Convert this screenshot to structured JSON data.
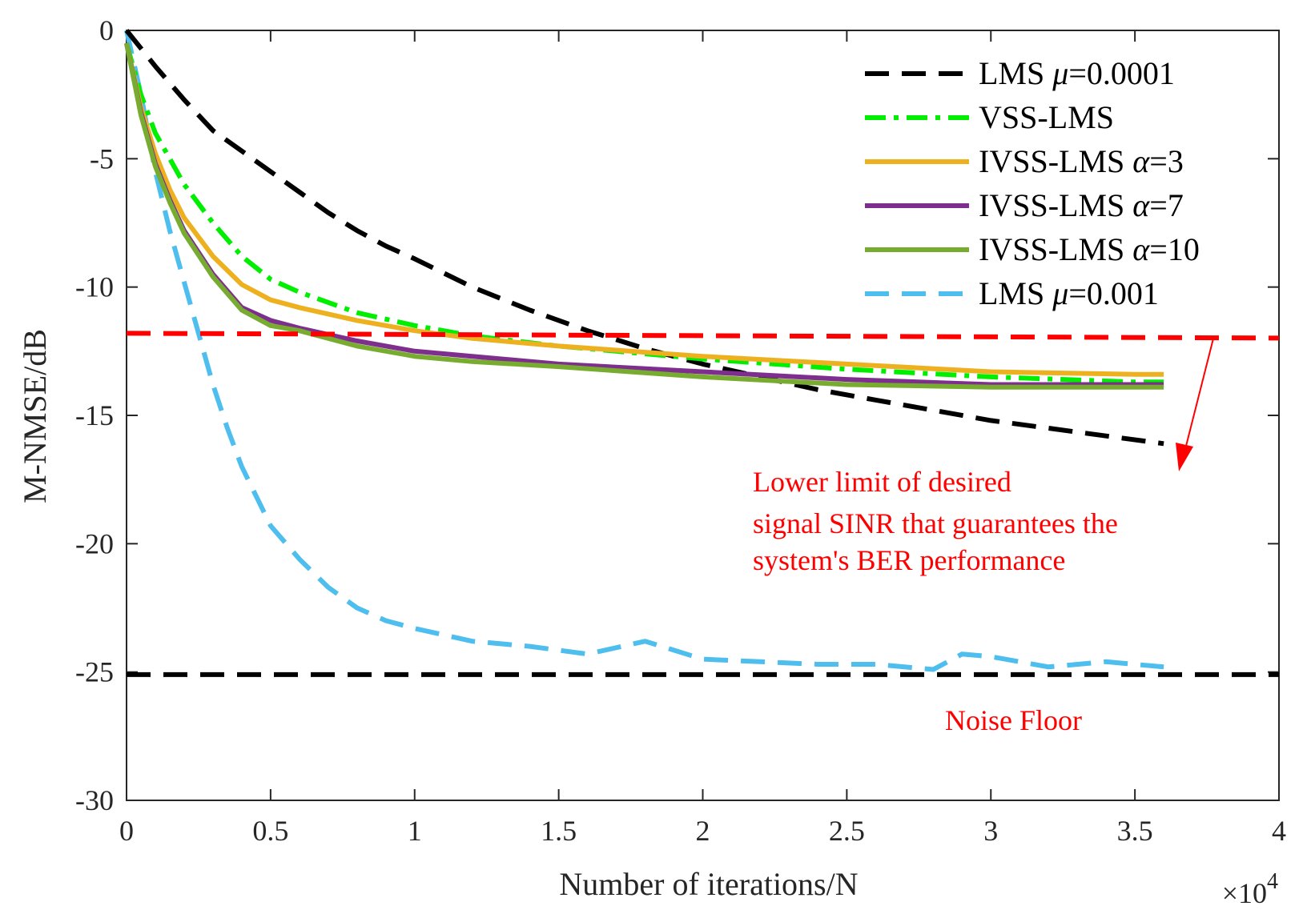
{
  "chart_data": {
    "type": "line",
    "xlabel": "Number of iterations/N",
    "ylabel": "M-NMSE/dB",
    "x_multiplier_base": "×10",
    "x_multiplier_exp": "4",
    "xlim": [
      0,
      4
    ],
    "ylim": [
      -30,
      0
    ],
    "x_ticks": [
      0,
      0.5,
      1,
      1.5,
      2,
      2.5,
      3,
      3.5,
      4
    ],
    "y_ticks": [
      0,
      -5,
      -10,
      -15,
      -20,
      -25,
      -30
    ],
    "legend_position": "top-right",
    "series": [
      {
        "name_text": "LMS ",
        "name_sym": "μ",
        "name_val": "=0.0001",
        "color": "#000000",
        "style": "dashed",
        "x": [
          0,
          0.1,
          0.2,
          0.3,
          0.4,
          0.5,
          0.6,
          0.7,
          0.8,
          0.9,
          1.0,
          1.2,
          1.4,
          1.6,
          1.8,
          2.0,
          2.2,
          2.4,
          2.6,
          2.8,
          3.0,
          3.2,
          3.4,
          3.6
        ],
        "y": [
          0,
          -1.4,
          -2.7,
          -3.9,
          -4.7,
          -5.5,
          -6.3,
          -7.1,
          -7.8,
          -8.4,
          -8.9,
          -10.0,
          -10.9,
          -11.7,
          -12.4,
          -13.0,
          -13.5,
          -14.0,
          -14.4,
          -14.8,
          -15.2,
          -15.5,
          -15.8,
          -16.1
        ]
      },
      {
        "name_text": "VSS-LMS",
        "name_sym": "",
        "name_val": "",
        "color": "#00ee00",
        "style": "dashdot",
        "x": [
          0,
          0.05,
          0.1,
          0.15,
          0.2,
          0.3,
          0.4,
          0.5,
          0.6,
          0.8,
          1.0,
          1.2,
          1.5,
          2.0,
          2.5,
          3.0,
          3.5,
          3.6
        ],
        "y": [
          -0.5,
          -2.5,
          -4.0,
          -5.0,
          -6.0,
          -7.5,
          -8.8,
          -9.7,
          -10.2,
          -11.0,
          -11.5,
          -11.9,
          -12.3,
          -12.8,
          -13.2,
          -13.5,
          -13.7,
          -13.7
        ]
      },
      {
        "name_text": "IVSS-LMS ",
        "name_sym": "α",
        "name_val": "=3",
        "color": "#edb120",
        "style": "solid",
        "x": [
          0,
          0.05,
          0.1,
          0.15,
          0.2,
          0.3,
          0.4,
          0.5,
          0.6,
          0.8,
          1.0,
          1.2,
          1.5,
          2.0,
          2.5,
          3.0,
          3.5,
          3.6
        ],
        "y": [
          -0.5,
          -3.0,
          -4.8,
          -6.2,
          -7.3,
          -8.8,
          -9.9,
          -10.5,
          -10.8,
          -11.3,
          -11.7,
          -12.0,
          -12.3,
          -12.7,
          -13.0,
          -13.3,
          -13.4,
          -13.4
        ]
      },
      {
        "name_text": "IVSS-LMS ",
        "name_sym": "α",
        "name_val": "=7",
        "color": "#7e2f8e",
        "style": "solid",
        "x": [
          0,
          0.05,
          0.1,
          0.15,
          0.2,
          0.3,
          0.4,
          0.5,
          0.6,
          0.8,
          1.0,
          1.2,
          1.5,
          2.0,
          2.5,
          3.0,
          3.5,
          3.6
        ],
        "y": [
          -0.5,
          -3.2,
          -5.2,
          -6.6,
          -7.8,
          -9.5,
          -10.8,
          -11.3,
          -11.6,
          -12.1,
          -12.5,
          -12.7,
          -13.0,
          -13.3,
          -13.6,
          -13.8,
          -13.8,
          -13.8
        ]
      },
      {
        "name_text": "IVSS-LMS ",
        "name_sym": "α",
        "name_val": "=10",
        "color": "#77ac30",
        "style": "solid",
        "x": [
          0,
          0.05,
          0.1,
          0.15,
          0.2,
          0.3,
          0.4,
          0.5,
          0.6,
          0.8,
          1.0,
          1.2,
          1.5,
          2.0,
          2.5,
          3.0,
          3.5,
          3.6
        ],
        "y": [
          -0.5,
          -3.3,
          -5.3,
          -6.7,
          -7.9,
          -9.6,
          -10.9,
          -11.5,
          -11.7,
          -12.3,
          -12.7,
          -12.9,
          -13.1,
          -13.5,
          -13.8,
          -13.9,
          -13.9,
          -13.9
        ]
      },
      {
        "name_text": "LMS ",
        "name_sym": "μ",
        "name_val": "=0.001",
        "color": "#4dbeee",
        "style": "dashed",
        "x": [
          0,
          0.05,
          0.1,
          0.15,
          0.2,
          0.25,
          0.3,
          0.35,
          0.4,
          0.5,
          0.6,
          0.7,
          0.8,
          0.9,
          1.0,
          1.2,
          1.4,
          1.6,
          1.8,
          2.0,
          2.2,
          2.4,
          2.6,
          2.8,
          2.9,
          3.0,
          3.1,
          3.2,
          3.4,
          3.6
        ],
        "y": [
          0,
          -2.5,
          -5.5,
          -7.8,
          -9.8,
          -11.8,
          -13.8,
          -15.5,
          -17.0,
          -19.3,
          -20.6,
          -21.7,
          -22.5,
          -23.0,
          -23.3,
          -23.8,
          -24.0,
          -24.3,
          -23.8,
          -24.5,
          -24.6,
          -24.7,
          -24.7,
          -24.9,
          -24.3,
          -24.4,
          -24.6,
          -24.8,
          -24.6,
          -24.8
        ]
      }
    ],
    "reference_lines": [
      {
        "id": "sinr-limit",
        "y": -11.8,
        "color": "#ff0000"
      },
      {
        "id": "noise-floor",
        "y": -25.1,
        "color": "#000000"
      }
    ],
    "annotations": {
      "lower_limit_line1": "Lower limit of desired",
      "lower_limit_line2": "signal SINR that guarantees the",
      "lower_limit_line3": "system's BER performance",
      "noise_floor": "Noise Floor"
    }
  }
}
